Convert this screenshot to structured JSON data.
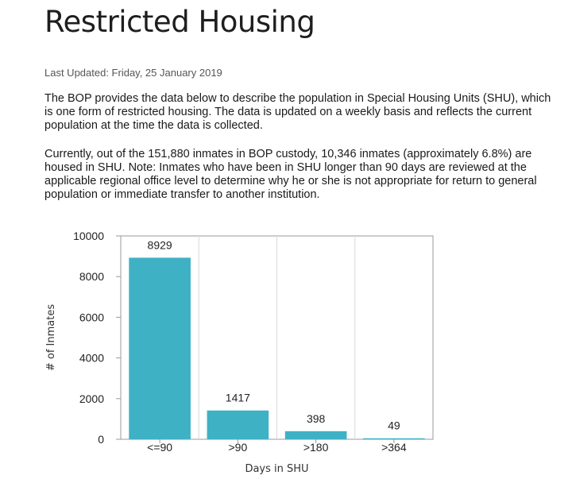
{
  "page": {
    "title": "Restricted Housing",
    "last_updated": "Last Updated: Friday, 25 January 2019",
    "paragraphs": [
      "The BOP provides the data below to describe the population in Special Housing Units (SHU), which is one form of restricted housing. The data is updated on a weekly basis and reflects the current population at the time the data is collected.",
      "Currently, out of the 151,880 inmates in BOP custody, 10,346 inmates (approximately 6.8%) are housed in SHU. Note: Inmates who have been in SHU longer than 90 days are reviewed at the applicable regional office level to determine why he or she is not appropriate for return to general population or immediate transfer to another institution."
    ]
  },
  "chart_data": {
    "type": "bar",
    "categories": [
      "<=90",
      ">90",
      ">180",
      ">364"
    ],
    "values": [
      8929,
      1417,
      398,
      49
    ],
    "data_labels": [
      "8929",
      "1417",
      "398",
      "49"
    ],
    "title": "",
    "xlabel": "Days in SHU",
    "ylabel": "# of Inmates",
    "ylim": [
      0,
      10000
    ],
    "yticks": [
      0,
      2000,
      4000,
      6000,
      8000,
      10000
    ],
    "grid": "vertical",
    "bar_color": "#3fb1c4"
  }
}
